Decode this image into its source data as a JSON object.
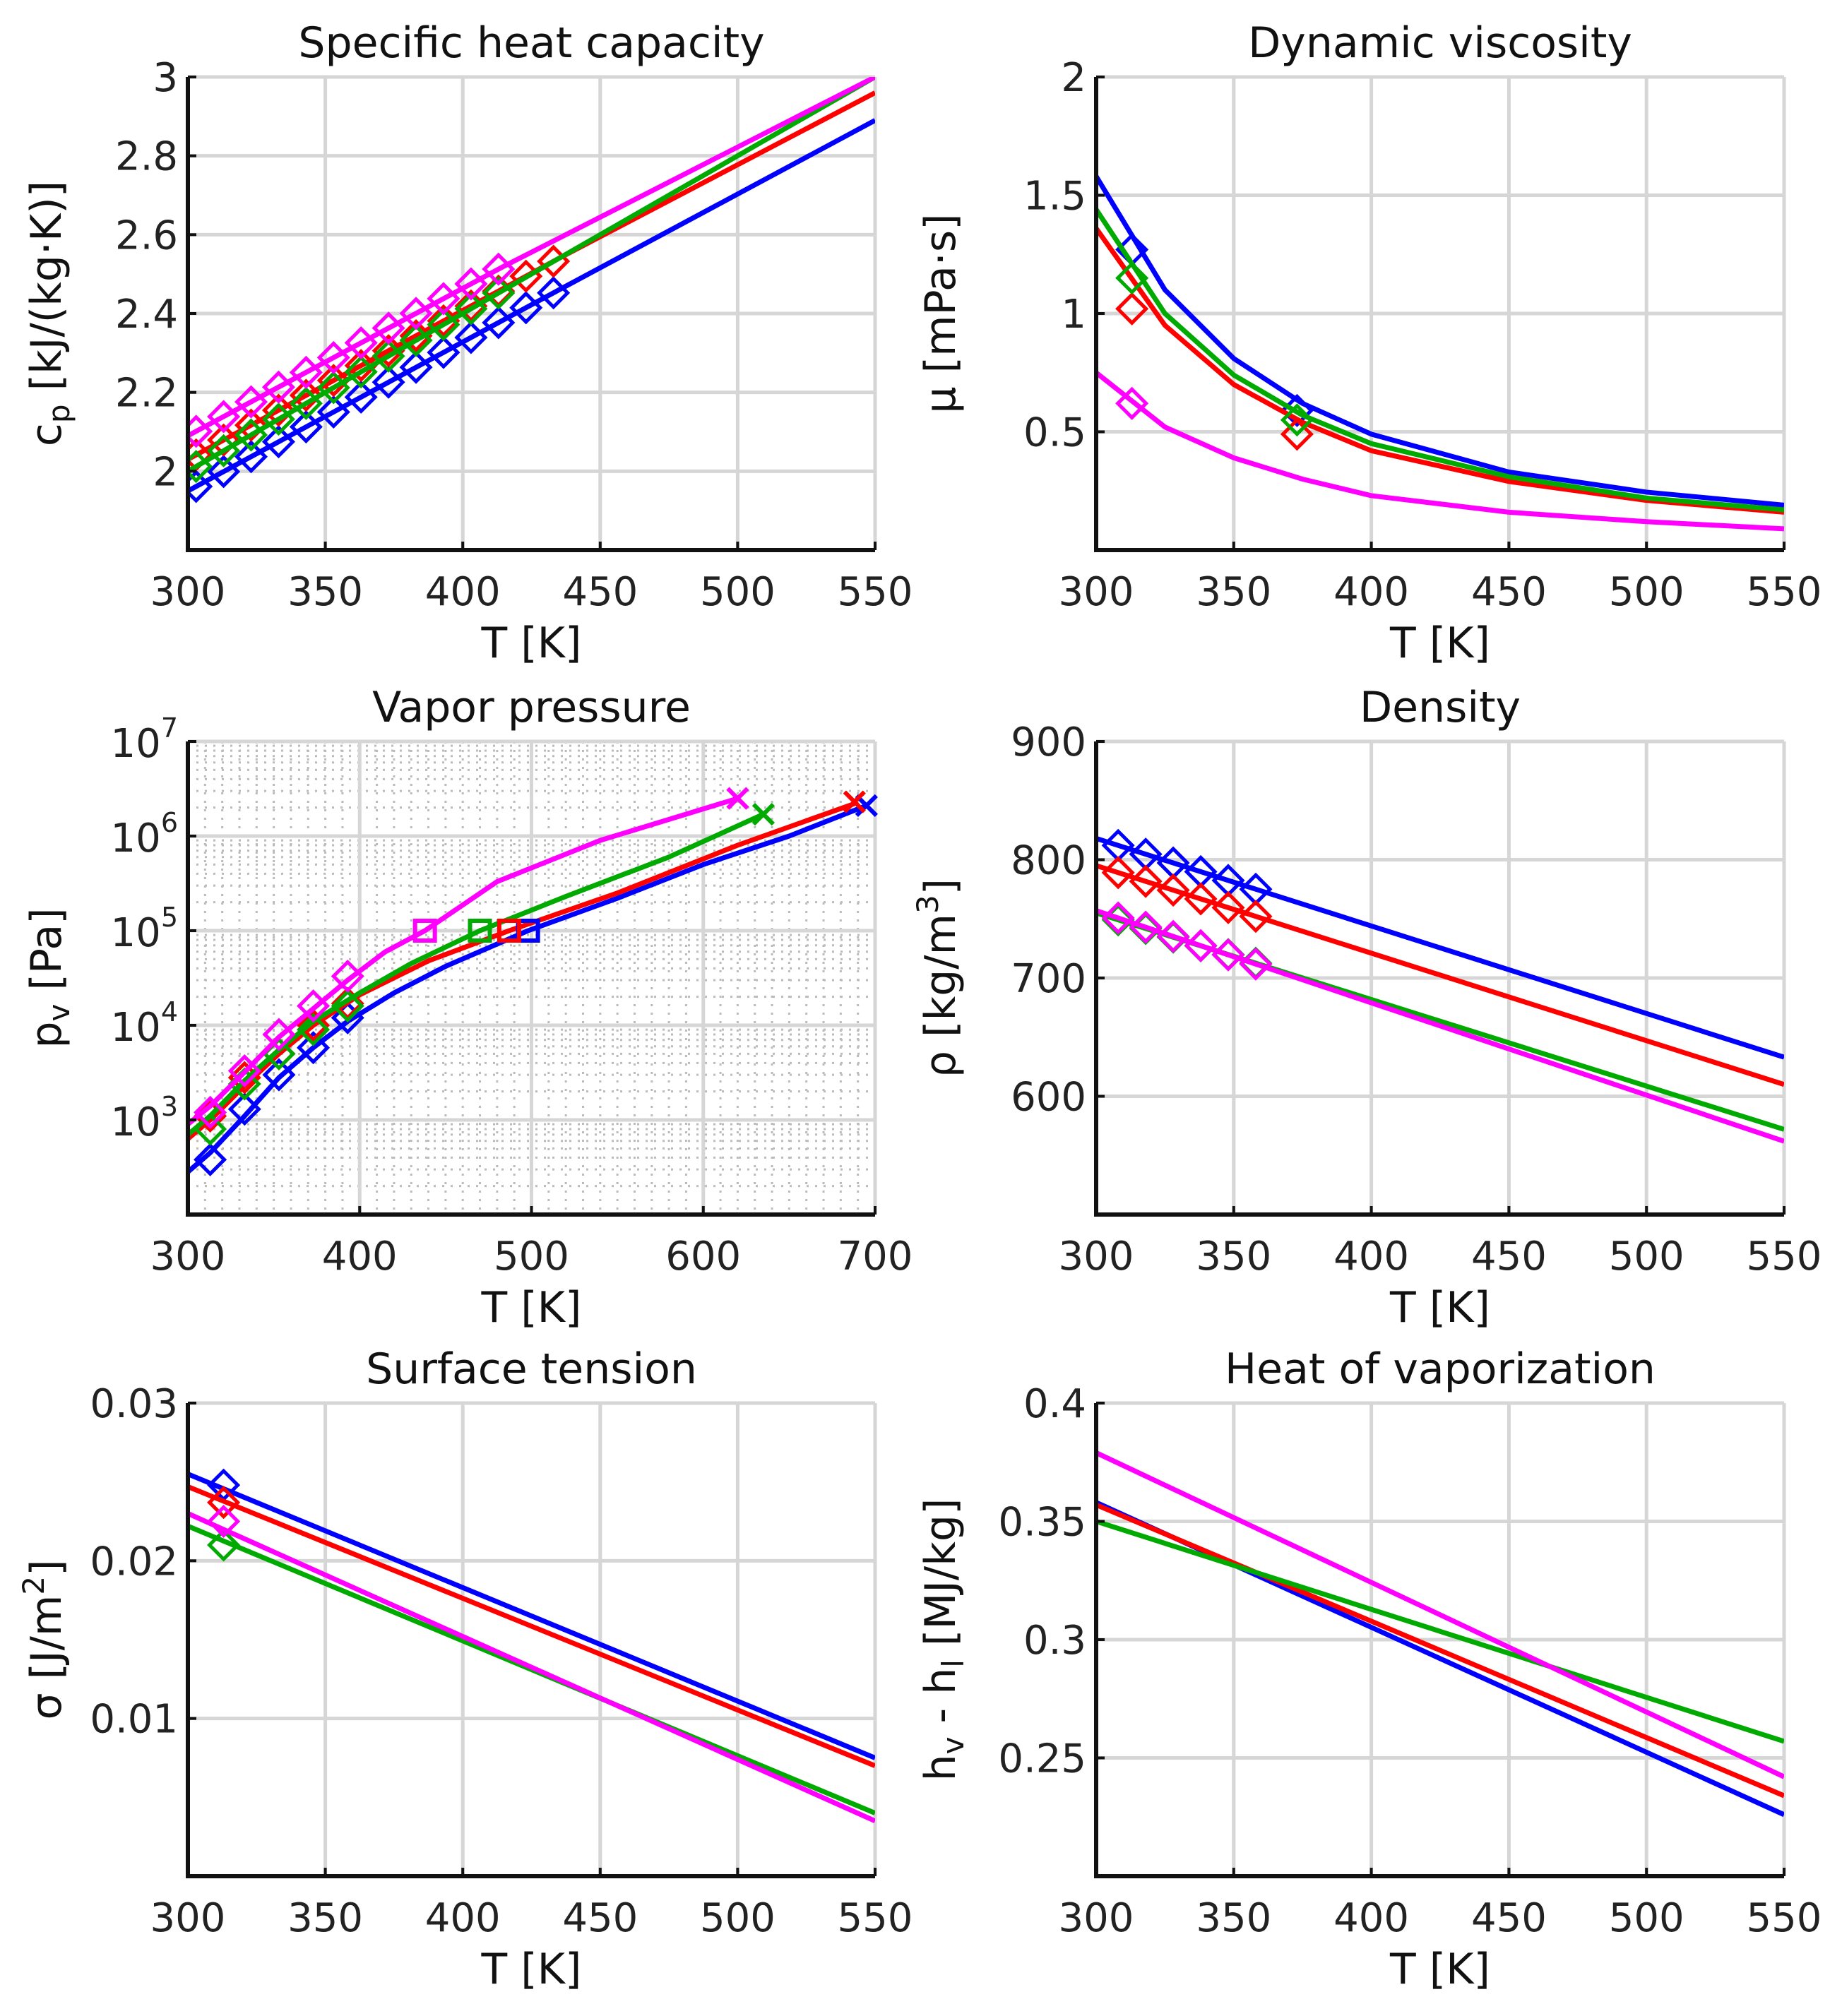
{
  "colors": {
    "blue": "#0000ff",
    "red": "#ff0000",
    "green": "#00aa00",
    "magenta": "#ff00ff"
  },
  "chart_data": [
    {
      "type": "line",
      "title": "Specific heat capacity",
      "xlabel": "T [K]",
      "ylabel": [
        {
          "t": "c"
        },
        {
          "t": "p",
          "s": "sub"
        },
        {
          "t": " [kJ/(kg·K)]"
        }
      ],
      "xlim": [
        300,
        550
      ],
      "ylim": [
        1.8,
        3.0
      ],
      "yscale": "linear",
      "xticks": [
        300,
        350,
        400,
        450,
        500,
        550
      ],
      "xtick_labels": [
        "300",
        "350",
        "400",
        "450",
        "500",
        "550"
      ],
      "yticks": [
        2,
        2.2,
        2.4,
        2.6,
        2.8,
        3
      ],
      "ytick_labels": [
        "2",
        "2.2",
        "2.4",
        "2.6",
        "2.8",
        "3"
      ],
      "series": [
        {
          "name": "blue",
          "line": [
            [
              300,
              1.95
            ],
            [
              435,
              2.46
            ],
            [
              550,
              2.89
            ]
          ],
          "diamonds_T": [
            303,
            313,
            323,
            333,
            343,
            353,
            363,
            373,
            383,
            393,
            403,
            413,
            423,
            433
          ]
        },
        {
          "name": "red",
          "line": [
            [
              300,
              2.03
            ],
            [
              435,
              2.54
            ],
            [
              550,
              2.96
            ]
          ],
          "diamonds_T": [
            303,
            313,
            323,
            333,
            343,
            353,
            363,
            373,
            383,
            393,
            403,
            413,
            423,
            433
          ]
        },
        {
          "name": "green",
          "line": [
            [
              300,
              2.0
            ],
            [
              415,
              2.46
            ],
            [
              550,
              3.0
            ]
          ],
          "diamonds_T": [
            303,
            313,
            323,
            333,
            343,
            353,
            363,
            373,
            383,
            393,
            403,
            413
          ]
        },
        {
          "name": "magenta",
          "line": [
            [
              300,
              2.09
            ],
            [
              415,
              2.52
            ],
            [
              550,
              3.0
            ]
          ],
          "diamonds_T": [
            303,
            313,
            323,
            333,
            343,
            353,
            363,
            373,
            383,
            393,
            403,
            413
          ]
        }
      ]
    },
    {
      "type": "line",
      "title": "Dynamic viscosity",
      "xlabel": "T [K]",
      "ylabel": [
        {
          "t": "μ [mPa·s]"
        }
      ],
      "xlim": [
        300,
        550
      ],
      "ylim": [
        0,
        2
      ],
      "yscale": "linear",
      "xticks": [
        300,
        350,
        400,
        450,
        500,
        550
      ],
      "xtick_labels": [
        "300",
        "350",
        "400",
        "450",
        "500",
        "550"
      ],
      "yticks": [
        0.5,
        1,
        1.5,
        2
      ],
      "ytick_labels": [
        "0.5",
        "1",
        "1.5",
        "2"
      ],
      "series": [
        {
          "name": "blue",
          "line": [
            [
              300,
              1.58
            ],
            [
              325,
              1.1
            ],
            [
              350,
              0.81
            ],
            [
              375,
              0.62
            ],
            [
              400,
              0.49
            ],
            [
              450,
              0.33
            ],
            [
              500,
              0.245
            ],
            [
              550,
              0.19
            ]
          ],
          "diamonds": [
            [
              313,
              1.27
            ],
            [
              373,
              0.59
            ]
          ]
        },
        {
          "name": "red",
          "line": [
            [
              300,
              1.36
            ],
            [
              325,
              0.95
            ],
            [
              350,
              0.7
            ],
            [
              375,
              0.54
            ],
            [
              400,
              0.42
            ],
            [
              450,
              0.29
            ],
            [
              500,
              0.21
            ],
            [
              550,
              0.16
            ]
          ],
          "diamonds": [
            [
              313,
              1.02
            ],
            [
              373,
              0.49
            ]
          ]
        },
        {
          "name": "green",
          "line": [
            [
              300,
              1.44
            ],
            [
              325,
              1.0
            ],
            [
              350,
              0.74
            ],
            [
              375,
              0.57
            ],
            [
              400,
              0.45
            ],
            [
              450,
              0.31
            ],
            [
              500,
              0.22
            ],
            [
              550,
              0.17
            ]
          ],
          "diamonds": [
            [
              313,
              1.15
            ],
            [
              373,
              0.55
            ]
          ]
        },
        {
          "name": "magenta",
          "line": [
            [
              300,
              0.75
            ],
            [
              325,
              0.52
            ],
            [
              350,
              0.39
            ],
            [
              375,
              0.3
            ],
            [
              400,
              0.23
            ],
            [
              450,
              0.16
            ],
            [
              500,
              0.12
            ],
            [
              550,
              0.09
            ]
          ],
          "diamonds": [
            [
              313,
              0.62
            ]
          ]
        }
      ]
    },
    {
      "type": "line",
      "title": "Vapor pressure",
      "xlabel": "T [K]",
      "ylabel": [
        {
          "t": "p"
        },
        {
          "t": "v",
          "s": "sub"
        },
        {
          "t": " [Pa]"
        }
      ],
      "xlim": [
        300,
        700
      ],
      "ylim": [
        100,
        10000000
      ],
      "yscale": "log",
      "minor_grid": true,
      "xticks": [
        300,
        400,
        500,
        600,
        700
      ],
      "xtick_labels": [
        "300",
        "400",
        "500",
        "600",
        "700"
      ],
      "yticks": [
        1000,
        10000,
        100000,
        1000000,
        10000000
      ],
      "ytick_labels": [
        [
          "10",
          "3"
        ],
        [
          "10",
          "4"
        ],
        [
          "10",
          "5"
        ],
        [
          "10",
          "6"
        ],
        [
          "10",
          "7"
        ]
      ],
      "series": [
        {
          "name": "blue",
          "line": [
            [
              300,
              282
            ],
            [
              313,
              450
            ],
            [
              333,
              1100
            ],
            [
              353,
              2800
            ],
            [
              373,
              5800
            ],
            [
              393,
              11000
            ],
            [
              420,
              22000
            ],
            [
              450,
              42000
            ],
            [
              498,
              100000
            ],
            [
              550,
              220000
            ],
            [
              600,
              500000
            ],
            [
              650,
              1000000
            ],
            [
              695,
              2100000
            ]
          ],
          "diamonds": [
            [
              313,
              380
            ],
            [
              333,
              1300
            ],
            [
              353,
              3000
            ],
            [
              373,
              5800
            ],
            [
              393,
              12000
            ]
          ],
          "squares": [
            [
              498,
              100000
            ]
          ],
          "crosses": [
            [
              695,
              2100000
            ]
          ]
        },
        {
          "name": "red",
          "line": [
            [
              300,
              630
            ],
            [
              313,
              1000
            ],
            [
              333,
              2300
            ],
            [
              353,
              5000
            ],
            [
              373,
              10000
            ],
            [
              400,
              21000
            ],
            [
              440,
              48000
            ],
            [
              487,
              100000
            ],
            [
              550,
              250000
            ],
            [
              620,
              800000
            ],
            [
              688,
              2200000
            ]
          ],
          "diamonds": [
            [
              313,
              1100
            ],
            [
              333,
              2800
            ],
            [
              353,
              5000
            ],
            [
              373,
              10000
            ],
            [
              393,
              17000
            ]
          ],
          "squares": [
            [
              487,
              100000
            ]
          ],
          "crosses": [
            [
              688,
              2300000
            ]
          ]
        },
        {
          "name": "green",
          "line": [
            [
              300,
              700
            ],
            [
              313,
              1100
            ],
            [
              333,
              2600
            ],
            [
              353,
              5500
            ],
            [
              373,
              11000
            ],
            [
              400,
              22000
            ],
            [
              430,
              45000
            ],
            [
              470,
              100000
            ],
            [
              520,
              230000
            ],
            [
              580,
              600000
            ],
            [
              635,
              1700000
            ]
          ],
          "diamonds": [
            [
              313,
              800
            ],
            [
              333,
              2400
            ],
            [
              353,
              5000
            ],
            [
              373,
              9000
            ],
            [
              393,
              16000
            ]
          ],
          "squares": [
            [
              470,
              100000
            ]
          ],
          "crosses": [
            [
              635,
              1700000
            ]
          ]
        },
        {
          "name": "magenta",
          "line": [
            [
              300,
              900
            ],
            [
              313,
              1400
            ],
            [
              333,
              3200
            ],
            [
              353,
              7500
            ],
            [
              373,
              15000
            ],
            [
              393,
              30000
            ],
            [
              415,
              60000
            ],
            [
              438,
              100000
            ],
            [
              480,
              330000
            ],
            [
              540,
              900000
            ],
            [
              620,
              2500000
            ]
          ],
          "diamonds": [
            [
              313,
              1200
            ],
            [
              333,
              3300
            ],
            [
              353,
              8000
            ],
            [
              373,
              16000
            ],
            [
              393,
              33000
            ]
          ],
          "squares": [
            [
              438,
              100000
            ]
          ],
          "crosses": [
            [
              620,
              2500000
            ]
          ]
        }
      ]
    },
    {
      "type": "line",
      "title": "Density",
      "xlabel": "T [K]",
      "ylabel": [
        {
          "t": "ρ [kg/m"
        },
        {
          "t": "3",
          "s": "sup"
        },
        {
          "t": "]"
        }
      ],
      "xlim": [
        300,
        550
      ],
      "ylim": [
        500,
        900
      ],
      "yscale": "linear",
      "xticks": [
        300,
        350,
        400,
        450,
        500,
        550
      ],
      "xtick_labels": [
        "300",
        "350",
        "400",
        "450",
        "500",
        "550"
      ],
      "yticks": [
        600,
        700,
        800,
        900
      ],
      "ytick_labels": [
        "600",
        "700",
        "800",
        "900"
      ],
      "series": [
        {
          "name": "blue",
          "line": [
            [
              300,
              818
            ],
            [
              550,
              633
            ]
          ],
          "diamonds_T": [
            308,
            318,
            328,
            338,
            348,
            358
          ]
        },
        {
          "name": "red",
          "line": [
            [
              300,
              795
            ],
            [
              550,
              610
            ]
          ],
          "diamonds_T": [
            308,
            318,
            328,
            338,
            348,
            358
          ]
        },
        {
          "name": "green",
          "line": [
            [
              300,
              755
            ],
            [
              550,
              572
            ]
          ],
          "diamonds_T": [
            308,
            318,
            328,
            338,
            348,
            358
          ]
        },
        {
          "name": "magenta",
          "line": [
            [
              300,
              757
            ],
            [
              550,
              562
            ]
          ],
          "diamonds_T": [
            308,
            318,
            328,
            338,
            348,
            358
          ]
        }
      ]
    },
    {
      "type": "line",
      "title": "Surface tension",
      "xlabel": "T [K]",
      "ylabel": [
        {
          "t": "σ [J/m"
        },
        {
          "t": "2",
          "s": "sup"
        },
        {
          "t": "]"
        }
      ],
      "xlim": [
        300,
        550
      ],
      "ylim": [
        0,
        0.03
      ],
      "yscale": "linear",
      "xticks": [
        300,
        350,
        400,
        450,
        500,
        550
      ],
      "xtick_labels": [
        "300",
        "350",
        "400",
        "450",
        "500",
        "550"
      ],
      "yticks": [
        0.01,
        0.02,
        0.03
      ],
      "ytick_labels": [
        "0.01",
        "0.02",
        "0.03"
      ],
      "series": [
        {
          "name": "blue",
          "line": [
            [
              300,
              0.0255
            ],
            [
              550,
              0.0075
            ]
          ],
          "diamonds": [
            [
              313,
              0.0248
            ]
          ]
        },
        {
          "name": "red",
          "line": [
            [
              300,
              0.0247
            ],
            [
              550,
              0.007
            ]
          ],
          "diamonds": [
            [
              313,
              0.0237
            ]
          ]
        },
        {
          "name": "green",
          "line": [
            [
              300,
              0.0222
            ],
            [
              550,
              0.004
            ]
          ],
          "diamonds": [
            [
              313,
              0.021
            ]
          ]
        },
        {
          "name": "magenta",
          "line": [
            [
              300,
              0.023
            ],
            [
              550,
              0.0035
            ]
          ],
          "diamonds": [
            [
              313,
              0.0225
            ]
          ]
        }
      ]
    },
    {
      "type": "line",
      "title": "Heat of vaporization",
      "xlabel": "T [K]",
      "ylabel": [
        {
          "t": "h"
        },
        {
          "t": "v",
          "s": "sub"
        },
        {
          "t": " - h"
        },
        {
          "t": "l",
          "s": "sub"
        },
        {
          "t": " [MJ/kg]"
        }
      ],
      "xlim": [
        300,
        550
      ],
      "ylim": [
        0.2,
        0.4
      ],
      "yscale": "linear",
      "xticks": [
        300,
        350,
        400,
        450,
        500,
        550
      ],
      "xtick_labels": [
        "300",
        "350",
        "400",
        "450",
        "500",
        "550"
      ],
      "yticks": [
        0.25,
        0.3,
        0.35,
        0.4
      ],
      "ytick_labels": [
        "0.25",
        "0.3",
        "0.35",
        "0.4"
      ],
      "series": [
        {
          "name": "blue",
          "line": [
            [
              300,
              0.358
            ],
            [
              550,
              0.226
            ]
          ]
        },
        {
          "name": "red",
          "line": [
            [
              300,
              0.357
            ],
            [
              550,
              0.234
            ]
          ]
        },
        {
          "name": "green",
          "line": [
            [
              300,
              0.35
            ],
            [
              550,
              0.257
            ]
          ]
        },
        {
          "name": "magenta",
          "line": [
            [
              300,
              0.379
            ],
            [
              550,
              0.242
            ]
          ]
        }
      ]
    }
  ]
}
